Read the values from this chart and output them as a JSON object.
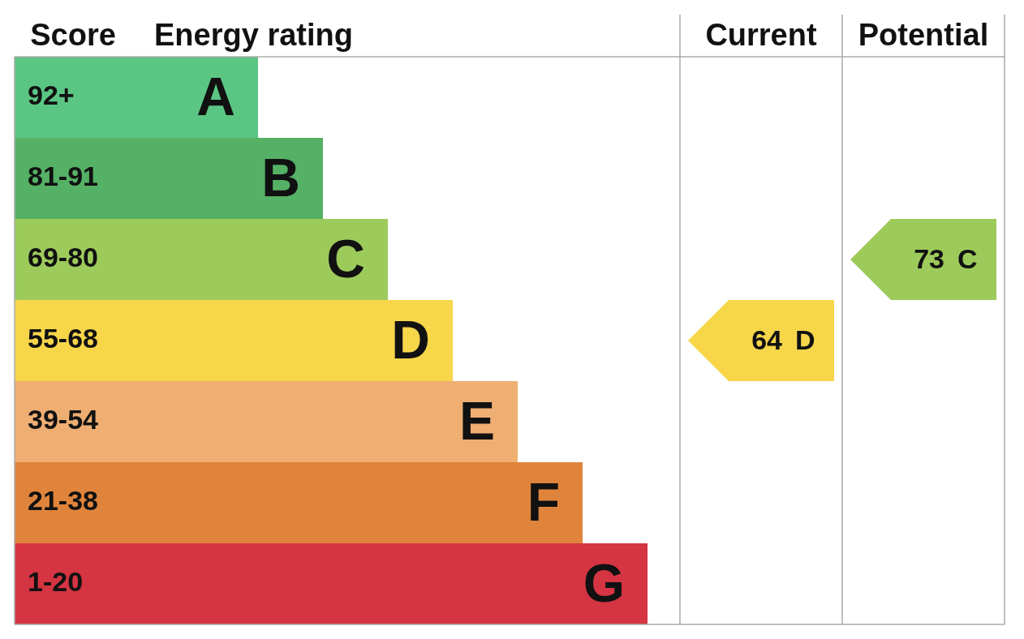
{
  "chart_data": {
    "type": "other",
    "ylabel": "Score",
    "xlabel": "Energy rating",
    "categories": [
      "92+",
      "81-91",
      "69-80",
      "55-68",
      "39-54",
      "21-38",
      "1-20"
    ],
    "colors": [
      "#5bc684",
      "#55b165",
      "#9dcb5b",
      "#f7d64a",
      "#efae72",
      "#e0843b",
      "#d53442"
    ],
    "value_labels": [
      "A",
      "B",
      "C",
      "D",
      "E",
      "F",
      "G"
    ],
    "series": [
      {
        "values": [
          null,
          null,
          null,
          64,
          null,
          null,
          null
        ]
      },
      {
        "values": [
          null,
          null,
          73,
          null,
          null,
          null,
          null
        ]
      }
    ],
    "data_labels": true,
    "annotations": [
      "Current",
      "Potential"
    ]
  }
}
